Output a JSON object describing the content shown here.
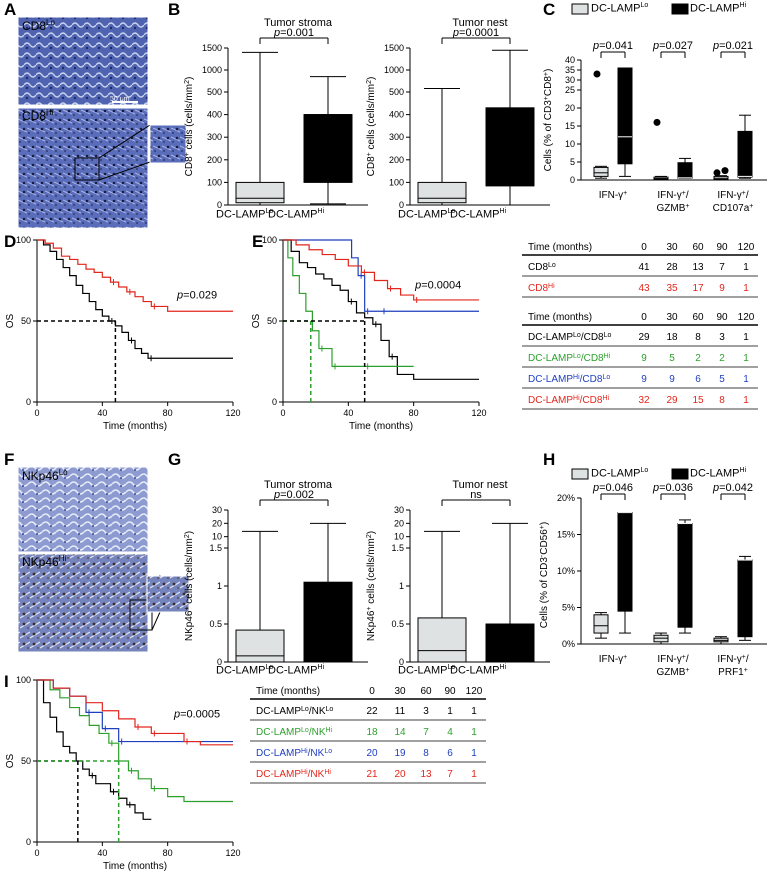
{
  "colors": {
    "black": "#000000",
    "red": "#e2261c",
    "green": "#2ca02c",
    "blue": "#1f3fbf",
    "lightgray": "#dfe2e2",
    "tissue": "#6a7cbf"
  },
  "panel_labels": {
    "A": "A",
    "B": "B",
    "C": "C",
    "D": "D",
    "E": "E",
    "F": "F",
    "G": "G",
    "H": "H",
    "I": "I"
  },
  "micrographs": {
    "A": {
      "top": {
        "base": "CD8",
        "sup": "Lo"
      },
      "bottom": {
        "base": "CD8",
        "sup": "Hi"
      },
      "scale": "50 μm"
    },
    "F": {
      "top": {
        "base": "NKp46",
        "sup": "Lo"
      },
      "bottom": {
        "base": "NKp46",
        "sup": "Hi"
      }
    }
  },
  "groups": {
    "lo": {
      "base": "DC-LAMP",
      "sup": "Lo"
    },
    "hi": {
      "base": "DC-LAMP",
      "sup": "Hi"
    }
  },
  "legend_C": {
    "lo": {
      "base": "DC-LAMP",
      "sup": "Lo"
    },
    "hi": {
      "base": "DC-LAMP",
      "sup": "Hi"
    }
  },
  "legend_H": {
    "lo": {
      "base": "DC-LAMP",
      "sup": "Lo"
    },
    "hi": {
      "base": "DC-LAMP",
      "sup": "Hi"
    }
  },
  "chart_data": [
    {
      "id": "B-stroma",
      "type": "box",
      "title": "Tumor stroma",
      "ylabel": {
        "pre": "CD8",
        "sup": "+",
        "post": " cells (cells/mm",
        "sup2": "2",
        "end": ")"
      },
      "categories": [
        "DC-LAMPLo",
        "DC-LAMPHi"
      ],
      "boxes": [
        {
          "min": 0,
          "q1": 10,
          "median": 30,
          "q3": 100,
          "max": 1400
        },
        {
          "min": 5,
          "q1": 100,
          "median": 400,
          "q3": 400,
          "max": 850
        }
      ],
      "pvalue": "p=0.001",
      "axis": "broken",
      "ticks_lower": [
        0,
        100,
        200,
        300,
        400,
        500
      ],
      "ticks_upper": [
        500,
        1000,
        1500
      ]
    },
    {
      "id": "B-nest",
      "type": "box",
      "title": "Tumor nest",
      "ylabel": {
        "pre": "CD8",
        "sup": "+",
        "post": " cells (cells/mm",
        "sup2": "2",
        "end": ")"
      },
      "categories": [
        "DC-LAMPLo",
        "DC-LAMPHi"
      ],
      "boxes": [
        {
          "min": 0,
          "q1": 10,
          "median": 30,
          "q3": 100,
          "max": 580
        },
        {
          "min": 0,
          "q1": 85,
          "median": 85,
          "q3": 430,
          "max": 1450
        }
      ],
      "pvalue": "p=0.0001",
      "axis": "broken",
      "ticks_lower": [
        0,
        100,
        200,
        300,
        400,
        500
      ],
      "ticks_upper": [
        500,
        1000,
        1500
      ]
    },
    {
      "id": "C",
      "type": "box",
      "ylabel": "Cells (% of CD3+CD8+)",
      "categories": [
        [
          "IFN-γ",
          "+"
        ],
        [
          "IFN-γ",
          "+",
          "/"
        ],
        [
          "IFN-γ",
          "+",
          "/"
        ]
      ],
      "categories_line2": [
        "",
        "GZMB+",
        "CD107a+"
      ],
      "pvalues": [
        "p=0.041",
        "p=0.027",
        "p=0.021"
      ],
      "ticks_lower": [
        0,
        5,
        10,
        15,
        20,
        25
      ],
      "ticks_upper": [
        25,
        30,
        35,
        40
      ],
      "groups": [
        {
          "lo": {
            "min": 0.5,
            "q1": 1,
            "median": 2,
            "q3": 3.5,
            "max": 3.8,
            "outliers": [
              33
            ]
          },
          "hi": {
            "min": 1,
            "q1": 4.5,
            "median": 12,
            "q3": 36,
            "max": 36
          }
        },
        {
          "lo": {
            "min": 0,
            "q1": 0.2,
            "median": 0.4,
            "q3": 0.8,
            "max": 1,
            "outliers": [
              16
            ]
          },
          "hi": {
            "min": 0.5,
            "q1": 0.5,
            "median": 0.6,
            "q3": 4.8,
            "max": 6
          }
        },
        {
          "lo": {
            "min": 0,
            "q1": 0.2,
            "median": 0.5,
            "q3": 1,
            "max": 1.2,
            "outliers": [
              2,
              2.6
            ]
          },
          "hi": {
            "min": 0.5,
            "q1": 0.8,
            "median": 1,
            "q3": 13.5,
            "max": 18
          }
        }
      ]
    },
    {
      "id": "D",
      "type": "line",
      "xlabel": "Time (months)",
      "ylabel": "OS",
      "xlim": [
        0,
        120
      ],
      "ylim": [
        0,
        100
      ],
      "xticks": [
        0,
        40,
        80,
        120
      ],
      "yticks": [
        0,
        50,
        100
      ],
      "pvalue": "p=0.029",
      "series": [
        {
          "name": "CD8Lo",
          "color": "black",
          "x": [
            0,
            4,
            8,
            12,
            16,
            20,
            24,
            28,
            32,
            36,
            40,
            44,
            48,
            52,
            56,
            60,
            64,
            68,
            72,
            80,
            120
          ],
          "y": [
            100,
            97,
            93,
            88,
            83,
            78,
            72,
            67,
            62,
            57,
            53,
            50,
            47,
            43,
            38,
            33,
            30,
            27,
            27,
            27,
            27
          ]
        },
        {
          "name": "CD8Hi",
          "color": "red",
          "x": [
            0,
            5,
            10,
            15,
            20,
            25,
            30,
            35,
            40,
            45,
            50,
            55,
            60,
            65,
            70,
            80,
            90,
            120
          ],
          "y": [
            100,
            98,
            95,
            90,
            88,
            85,
            82,
            80,
            77,
            74,
            71,
            68,
            65,
            62,
            59,
            56,
            56,
            56
          ]
        }
      ]
    },
    {
      "id": "E",
      "type": "line",
      "xlabel": "Time (months)",
      "ylabel": "OS",
      "xlim": [
        0,
        120
      ],
      "ylim": [
        0,
        100
      ],
      "xticks": [
        0,
        40,
        80,
        120
      ],
      "yticks": [
        0,
        50,
        100
      ],
      "pvalue": "p=0.0004",
      "series": [
        {
          "name": "DC-LAMPLo/CD8Lo",
          "color": "black",
          "x": [
            0,
            5,
            10,
            15,
            20,
            25,
            30,
            35,
            40,
            45,
            50,
            55,
            60,
            65,
            70,
            80,
            120
          ],
          "y": [
            100,
            93,
            86,
            83,
            79,
            76,
            72,
            69,
            62,
            55,
            52,
            48,
            38,
            28,
            17,
            14,
            14
          ]
        },
        {
          "name": "DC-LAMPLo/CD8Hi",
          "color": "green",
          "x": [
            0,
            3,
            6,
            10,
            14,
            18,
            22,
            26,
            30,
            40,
            50,
            60,
            80
          ],
          "y": [
            100,
            89,
            78,
            67,
            56,
            44,
            33,
            33,
            22,
            22,
            22,
            22,
            22
          ]
        },
        {
          "name": "DC-LAMPHi/CD8Lo",
          "color": "blue",
          "x": [
            0,
            38,
            42,
            46,
            50,
            60,
            80,
            120
          ],
          "y": [
            100,
            100,
            89,
            78,
            56,
            56,
            56,
            56
          ]
        },
        {
          "name": "DC-LAMPHi/CD8Hi",
          "color": "red",
          "x": [
            0,
            8,
            16,
            24,
            32,
            40,
            48,
            56,
            64,
            72,
            80,
            90,
            120
          ],
          "y": [
            100,
            97,
            94,
            91,
            88,
            84,
            80,
            75,
            70,
            66,
            63,
            63,
            63
          ]
        }
      ]
    },
    {
      "id": "G-stroma",
      "type": "box",
      "title": "Tumor stroma",
      "ylabel": {
        "pre": "NKp46",
        "sup": "+",
        "post": " cells (cells/mm",
        "sup2": "2",
        "end": ")"
      },
      "categories": [
        "DC-LAMPLo",
        "DC-LAMPHi"
      ],
      "boxes": [
        {
          "min": 0,
          "q1": 0,
          "median": 0.08,
          "q3": 0.42,
          "max": 14
        },
        {
          "min": 0,
          "q1": 0,
          "median": 0,
          "q3": 1.05,
          "max": 20
        }
      ],
      "pvalue": "p=0.002",
      "axis": "broken",
      "ticks_lower": [
        0.0,
        0.5,
        1.0,
        1.5
      ],
      "ticks_upper": [
        10,
        20,
        30
      ]
    },
    {
      "id": "G-nest",
      "type": "box",
      "title": "Tumor nest",
      "ylabel": {
        "pre": "NKp46",
        "sup": "+",
        "post": " cells (cells/mm",
        "sup2": "2",
        "end": ")"
      },
      "categories": [
        "DC-LAMPLo",
        "DC-LAMPHi"
      ],
      "boxes": [
        {
          "min": 0,
          "q1": 0,
          "median": 0.15,
          "q3": 0.58,
          "max": 14
        },
        {
          "min": 0,
          "q1": 0,
          "median": 0,
          "q3": 0.5,
          "max": 20
        }
      ],
      "pvalue": "ns",
      "axis": "broken",
      "ticks_lower": [
        0.0,
        0.5,
        1.0,
        1.5
      ],
      "ticks_upper": [
        10,
        20,
        30
      ]
    },
    {
      "id": "H",
      "type": "box",
      "ylabel": "Cells (% of CD3-CD56+)",
      "pvalues": [
        "p=0.046",
        "p=0.036",
        "p=0.042"
      ],
      "yticks": [
        0,
        5,
        10,
        15,
        20
      ],
      "ylim": [
        0,
        20
      ],
      "groups": [
        {
          "lo": {
            "min": 0.8,
            "q1": 1.5,
            "median": 2.5,
            "q3": 4,
            "max": 4.3
          },
          "hi": {
            "min": 1.5,
            "q1": 4.5,
            "median": 18,
            "q3": 18,
            "max": 18
          }
        },
        {
          "lo": {
            "min": 0,
            "q1": 0.3,
            "median": 0.8,
            "q3": 1.2,
            "max": 1.5
          },
          "hi": {
            "min": 1.5,
            "q1": 2.3,
            "median": 16.5,
            "q3": 16.5,
            "max": 17
          }
        },
        {
          "lo": {
            "min": 0,
            "q1": 0.3,
            "median": 0.5,
            "q3": 0.8,
            "max": 1
          },
          "hi": {
            "min": 0.5,
            "q1": 1,
            "median": 11.5,
            "q3": 11.5,
            "max": 12
          }
        }
      ]
    },
    {
      "id": "I",
      "type": "line",
      "xlabel": "Time (months)",
      "ylabel": "OS",
      "xlim": [
        0,
        120
      ],
      "ylim": [
        0,
        100
      ],
      "xticks": [
        0,
        40,
        80,
        120
      ],
      "yticks": [
        0,
        50,
        100
      ],
      "pvalue": "p=0.0005",
      "series": [
        {
          "name": "DC-LAMPLo/NKLo",
          "color": "black",
          "x": [
            0,
            4,
            8,
            12,
            16,
            20,
            24,
            28,
            32,
            36,
            40,
            45,
            50,
            55,
            60,
            65,
            70
          ],
          "y": [
            100,
            86,
            77,
            68,
            59,
            55,
            50,
            45,
            41,
            36,
            36,
            31,
            27,
            23,
            18,
            14,
            14
          ]
        },
        {
          "name": "DC-LAMPLo/NKHi",
          "color": "green",
          "x": [
            0,
            8,
            14,
            20,
            26,
            32,
            38,
            44,
            50,
            56,
            62,
            70,
            80,
            90,
            120
          ],
          "y": [
            100,
            94,
            89,
            83,
            78,
            72,
            67,
            61,
            50,
            44,
            39,
            33,
            28,
            25,
            25
          ]
        },
        {
          "name": "DC-LAMPHi/NKLo",
          "color": "blue",
          "x": [
            0,
            10,
            20,
            30,
            40,
            50,
            120
          ],
          "y": [
            100,
            95,
            90,
            80,
            70,
            62,
            62
          ]
        },
        {
          "name": "DC-LAMPHi/NKHi",
          "color": "red",
          "x": [
            0,
            10,
            20,
            30,
            40,
            50,
            60,
            70,
            80,
            90,
            100,
            120
          ],
          "y": [
            100,
            95,
            90,
            86,
            81,
            76,
            71,
            67,
            67,
            62,
            60,
            60
          ]
        }
      ]
    }
  ],
  "tables": {
    "D": {
      "header": [
        "Time (months)",
        "0",
        "30",
        "60",
        "90",
        "120"
      ],
      "rows": [
        {
          "label": {
            "base": "CD8",
            "sup": "Lo",
            "base2": "",
            "sup2": ""
          },
          "values": [
            "41",
            "28",
            "13",
            "7",
            "1"
          ],
          "color": "black"
        },
        {
          "label": {
            "base": "CD8",
            "sup": "Hi",
            "base2": "",
            "sup2": ""
          },
          "values": [
            "43",
            "35",
            "17",
            "9",
            "1"
          ],
          "color": "red"
        }
      ]
    },
    "E": {
      "header": [
        "Time (months)",
        "0",
        "30",
        "60",
        "90",
        "120"
      ],
      "rows": [
        {
          "label": {
            "base": "DC-LAMP",
            "sup": "Lo",
            "base2": "/CD8",
            "sup2": "Lo"
          },
          "values": [
            "29",
            "18",
            "8",
            "3",
            "1"
          ],
          "color": "black"
        },
        {
          "label": {
            "base": "DC-LAMP",
            "sup": "Lo",
            "base2": "/CD8",
            "sup2": "Hi"
          },
          "values": [
            "9",
            "5",
            "2",
            "2",
            "1"
          ],
          "color": "green"
        },
        {
          "label": {
            "base": "DC-LAMP",
            "sup": "Hi",
            "base2": "/CD8",
            "sup2": "Lo"
          },
          "values": [
            "9",
            "9",
            "6",
            "5",
            "1"
          ],
          "color": "blue"
        },
        {
          "label": {
            "base": "DC-LAMP",
            "sup": "Hi",
            "base2": "/CD8",
            "sup2": "Hi"
          },
          "values": [
            "32",
            "29",
            "15",
            "8",
            "1"
          ],
          "color": "red"
        }
      ]
    },
    "I": {
      "header": [
        "Time (months)",
        "0",
        "30",
        "60",
        "90",
        "120"
      ],
      "rows": [
        {
          "label": {
            "base": "DC-LAMP",
            "sup": "Lo",
            "base2": "/NK",
            "sup2": "Lo"
          },
          "values": [
            "22",
            "11",
            "3",
            "1",
            "1"
          ],
          "color": "black"
        },
        {
          "label": {
            "base": "DC-LAMP",
            "sup": "Lo",
            "base2": "/NK",
            "sup2": "Hi"
          },
          "values": [
            "18",
            "14",
            "7",
            "4",
            "1"
          ],
          "color": "green"
        },
        {
          "label": {
            "base": "DC-LAMP",
            "sup": "Hi",
            "base2": "/NK",
            "sup2": "Lo"
          },
          "values": [
            "20",
            "19",
            "8",
            "6",
            "1"
          ],
          "color": "blue"
        },
        {
          "label": {
            "base": "DC-LAMP",
            "sup": "Hi",
            "base2": "/NK",
            "sup2": "Hi"
          },
          "values": [
            "21",
            "20",
            "13",
            "7",
            "1"
          ],
          "color": "red"
        }
      ]
    }
  }
}
